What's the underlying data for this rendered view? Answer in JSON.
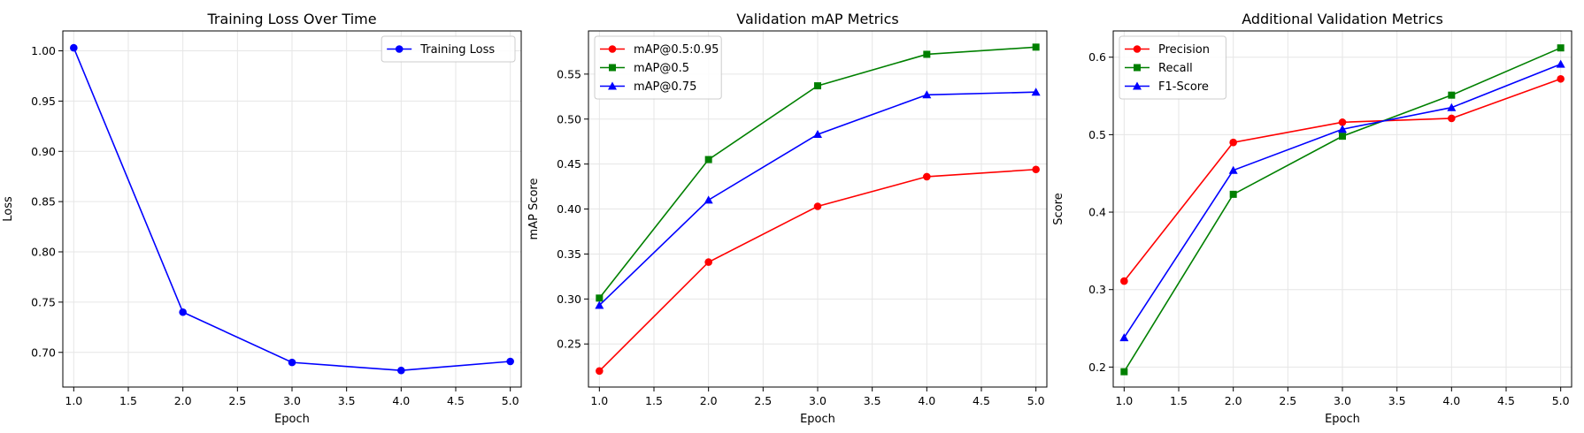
{
  "colors": {
    "red": "#ff0000",
    "green": "#008000",
    "blue": "#0000ff",
    "grid": "#e6e6e6",
    "axis": "#000000"
  },
  "chart_data": [
    {
      "type": "line",
      "title": "Training Loss Over Time",
      "xlabel": "Epoch",
      "ylabel": "Loss",
      "xlim": [
        0.9,
        5.1
      ],
      "ylim": [
        0.6655,
        1.0198
      ],
      "xticks": [
        1.0,
        1.5,
        2.0,
        2.5,
        3.0,
        3.5,
        4.0,
        4.5,
        5.0
      ],
      "xtick_labels": [
        "1.0",
        "1.5",
        "2.0",
        "2.5",
        "3.0",
        "3.5",
        "4.0",
        "4.5",
        "5.0"
      ],
      "yticks": [
        0.7,
        0.75,
        0.8,
        0.85,
        0.9,
        0.95,
        1.0
      ],
      "ytick_labels": [
        "0.70",
        "0.75",
        "0.80",
        "0.85",
        "0.90",
        "0.95",
        "1.00"
      ],
      "grid": true,
      "legend_position": "top-right",
      "x": [
        1,
        2,
        3,
        4,
        5
      ],
      "series": [
        {
          "name": "Training Loss",
          "color": "#0000ff",
          "marker": "circle",
          "values": [
            1.003,
            0.74,
            0.69,
            0.682,
            0.691
          ]
        }
      ]
    },
    {
      "type": "line",
      "title": "Validation mAP Metrics",
      "xlabel": "Epoch",
      "ylabel": "mAP Score",
      "xlim": [
        0.9,
        5.1
      ],
      "ylim": [
        0.2021,
        0.598
      ],
      "xticks": [
        1.0,
        1.5,
        2.0,
        2.5,
        3.0,
        3.5,
        4.0,
        4.5,
        5.0
      ],
      "xtick_labels": [
        "1.0",
        "1.5",
        "2.0",
        "2.5",
        "3.0",
        "3.5",
        "4.0",
        "4.5",
        "5.0"
      ],
      "yticks": [
        0.25,
        0.3,
        0.35,
        0.4,
        0.45,
        0.5,
        0.55
      ],
      "ytick_labels": [
        "0.25",
        "0.30",
        "0.35",
        "0.40",
        "0.45",
        "0.50",
        "0.55"
      ],
      "grid": true,
      "legend_position": "top-left",
      "x": [
        1,
        2,
        3,
        4,
        5
      ],
      "series": [
        {
          "name": "mAP@0.5:0.95",
          "color": "#ff0000",
          "marker": "circle",
          "values": [
            0.22,
            0.341,
            0.403,
            0.436,
            0.444
          ]
        },
        {
          "name": "mAP@0.5",
          "color": "#008000",
          "marker": "square",
          "values": [
            0.301,
            0.455,
            0.537,
            0.572,
            0.58
          ]
        },
        {
          "name": "mAP@0.75",
          "color": "#0000ff",
          "marker": "triangle",
          "values": [
            0.293,
            0.41,
            0.483,
            0.527,
            0.53
          ]
        }
      ]
    },
    {
      "type": "line",
      "title": "Additional Validation Metrics",
      "xlabel": "Epoch",
      "ylabel": "Score",
      "xlim": [
        0.9,
        5.1
      ],
      "ylim": [
        0.1742,
        0.6339
      ],
      "xticks": [
        1.0,
        1.5,
        2.0,
        2.5,
        3.0,
        3.5,
        4.0,
        4.5,
        5.0
      ],
      "xtick_labels": [
        "1.0",
        "1.5",
        "2.0",
        "2.5",
        "3.0",
        "3.5",
        "4.0",
        "4.5",
        "5.0"
      ],
      "yticks": [
        0.2,
        0.3,
        0.4,
        0.5,
        0.6
      ],
      "ytick_labels": [
        "0.2",
        "0.3",
        "0.4",
        "0.5",
        "0.6"
      ],
      "grid": true,
      "legend_position": "top-left",
      "x": [
        1,
        2,
        3,
        4,
        5
      ],
      "series": [
        {
          "name": "Precision",
          "color": "#ff0000",
          "marker": "circle",
          "values": [
            0.311,
            0.49,
            0.516,
            0.521,
            0.572
          ]
        },
        {
          "name": "Recall",
          "color": "#008000",
          "marker": "square",
          "values": [
            0.194,
            0.423,
            0.498,
            0.551,
            0.612
          ]
        },
        {
          "name": "F1-Score",
          "color": "#0000ff",
          "marker": "triangle",
          "values": [
            0.238,
            0.454,
            0.507,
            0.535,
            0.591
          ]
        }
      ]
    }
  ]
}
